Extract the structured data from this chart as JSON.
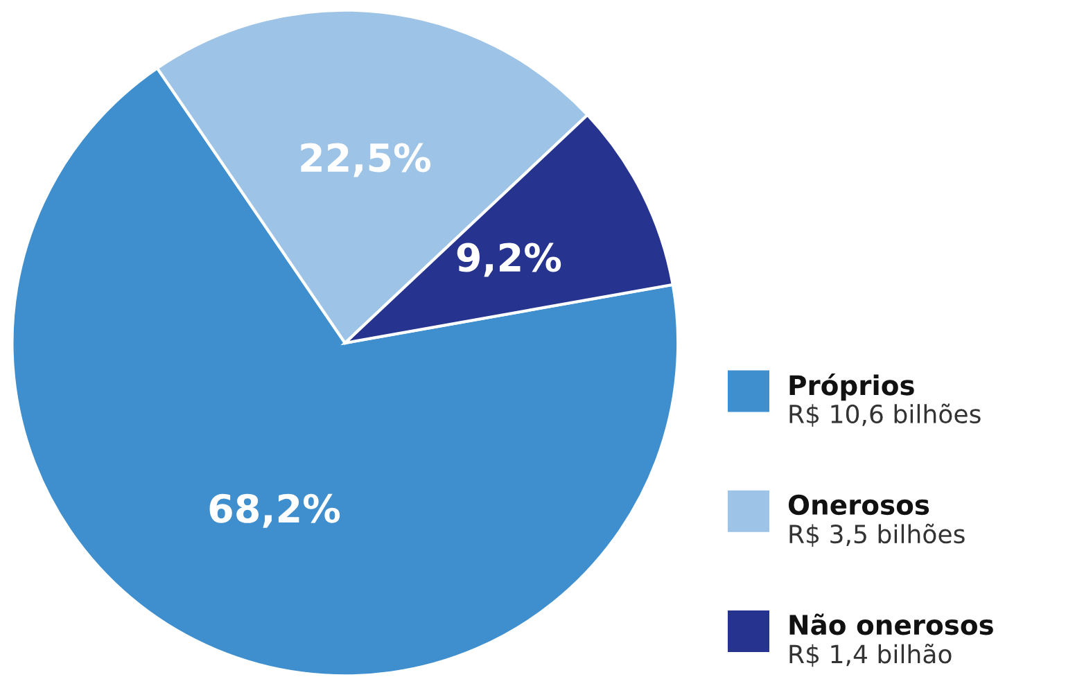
{
  "chart_data": {
    "type": "pie",
    "categories": [
      "Próprios",
      "Onerosos",
      "Não onerosos"
    ],
    "values": [
      68.2,
      22.5,
      9.2
    ],
    "colors": [
      "#3f8fcf",
      "#9dc3e6",
      "#26348f"
    ],
    "value_labels": [
      "68,2%",
      "22,5%",
      "9,2%"
    ],
    "annotations": [
      "R$ 10,6 bilhões",
      "R$ 3,5 bilhões",
      "R$ 1,4 bilhão"
    ],
    "legend": "bottom right"
  }
}
